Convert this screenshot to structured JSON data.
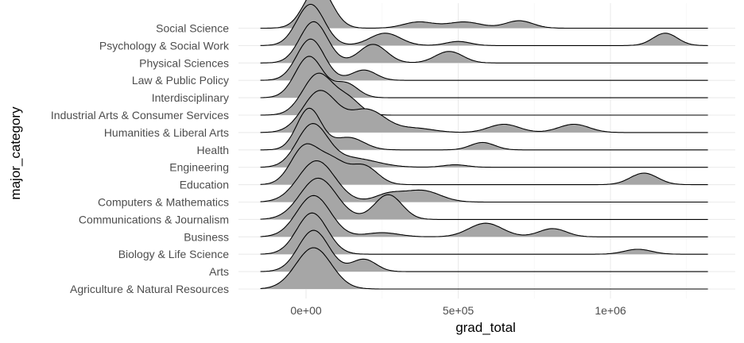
{
  "chart_data": {
    "type": "ridgeline",
    "xlabel": "grad_total",
    "ylabel": "major_category",
    "xlim": [
      -150000,
      1320000
    ],
    "x_ticks": [
      {
        "value": 0,
        "label": "0e+00"
      },
      {
        "value": 500000,
        "label": "5e+05"
      },
      {
        "value": 1000000,
        "label": "1e+06"
      }
    ],
    "x_minor_ticks": [
      -250000,
      250000,
      750000,
      1250000
    ],
    "fill_color": "#a6a6a6",
    "line_color": "#000000",
    "grid": true,
    "legend": "none",
    "categories": [
      "Agriculture & Natural Resources",
      "Arts",
      "Biology & Life Science",
      "Business",
      "Communications & Journalism",
      "Computers & Mathematics",
      "Education",
      "Engineering",
      "Health",
      "Humanities & Liberal Arts",
      "Industrial Arts & Consumer Services",
      "Interdisciplinary",
      "Law & Public Policy",
      "Physical Sciences",
      "Psychology & Social Work",
      "Social Science"
    ],
    "series": [
      {
        "name": "Agriculture & Natural Resources",
        "peaks": [
          [
            25000,
            58000,
            1.0
          ]
        ]
      },
      {
        "name": "Arts",
        "peaks": [
          [
            25000,
            50000,
            1.0
          ],
          [
            190000,
            40000,
            0.3
          ]
        ]
      },
      {
        "name": "Biology & Life Science",
        "peaks": [
          [
            20000,
            50000,
            1.0
          ],
          [
            1090000,
            45000,
            0.12
          ]
        ]
      },
      {
        "name": "Business",
        "peaks": [
          [
            25000,
            55000,
            1.0
          ],
          [
            250000,
            55000,
            0.1
          ],
          [
            590000,
            55000,
            0.33
          ],
          [
            810000,
            45000,
            0.2
          ]
        ]
      },
      {
        "name": "Communications & Journalism",
        "peaks": [
          [
            40000,
            60000,
            1.0
          ],
          [
            270000,
            45000,
            0.6
          ]
        ]
      },
      {
        "name": "Computers & Mathematics",
        "peaks": [
          [
            35000,
            60000,
            1.0
          ],
          [
            270000,
            45000,
            0.18
          ],
          [
            380000,
            60000,
            0.28
          ]
        ]
      },
      {
        "name": "Education",
        "peaks": [
          [
            -5000,
            45000,
            0.9
          ],
          [
            85000,
            45000,
            0.55
          ],
          [
            190000,
            45000,
            0.45
          ],
          [
            1110000,
            45000,
            0.28
          ]
        ]
      },
      {
        "name": "Engineering",
        "peaks": [
          [
            20000,
            50000,
            1.0
          ],
          [
            150000,
            80000,
            0.22
          ],
          [
            490000,
            40000,
            0.06
          ]
        ]
      },
      {
        "name": "Health",
        "peaks": [
          [
            10000,
            40000,
            1.0
          ],
          [
            140000,
            50000,
            0.3
          ],
          [
            580000,
            40000,
            0.18
          ]
        ]
      },
      {
        "name": "Humanities & Liberal Arts",
        "peaks": [
          [
            45000,
            55000,
            1.0
          ],
          [
            200000,
            60000,
            0.55
          ],
          [
            360000,
            60000,
            0.1
          ],
          [
            650000,
            50000,
            0.2
          ],
          [
            880000,
            50000,
            0.2
          ]
        ]
      },
      {
        "name": "Industrial Arts & Consumer Services",
        "peaks": [
          [
            40000,
            50000,
            1.0
          ],
          [
            140000,
            40000,
            0.35
          ]
        ]
      },
      {
        "name": "Interdisciplinary",
        "peaks": [
          [
            10000,
            45000,
            1.0
          ],
          [
            130000,
            40000,
            0.35
          ]
        ]
      },
      {
        "name": "Law & Public Policy",
        "peaks": [
          [
            15000,
            45000,
            1.0
          ],
          [
            190000,
            40000,
            0.25
          ]
        ]
      },
      {
        "name": "Physical Sciences",
        "peaks": [
          [
            25000,
            45000,
            1.0
          ],
          [
            220000,
            45000,
            0.45
          ],
          [
            470000,
            45000,
            0.28
          ]
        ]
      },
      {
        "name": "Psychology & Social Work",
        "peaks": [
          [
            15000,
            45000,
            1.0
          ],
          [
            260000,
            50000,
            0.3
          ],
          [
            500000,
            40000,
            0.1
          ],
          [
            1180000,
            40000,
            0.3
          ]
        ]
      },
      {
        "name": "Social Science",
        "peaks": [
          [
            40000,
            45000,
            1.0
          ],
          [
            370000,
            50000,
            0.15
          ],
          [
            520000,
            55000,
            0.15
          ],
          [
            700000,
            45000,
            0.18
          ]
        ]
      }
    ]
  }
}
